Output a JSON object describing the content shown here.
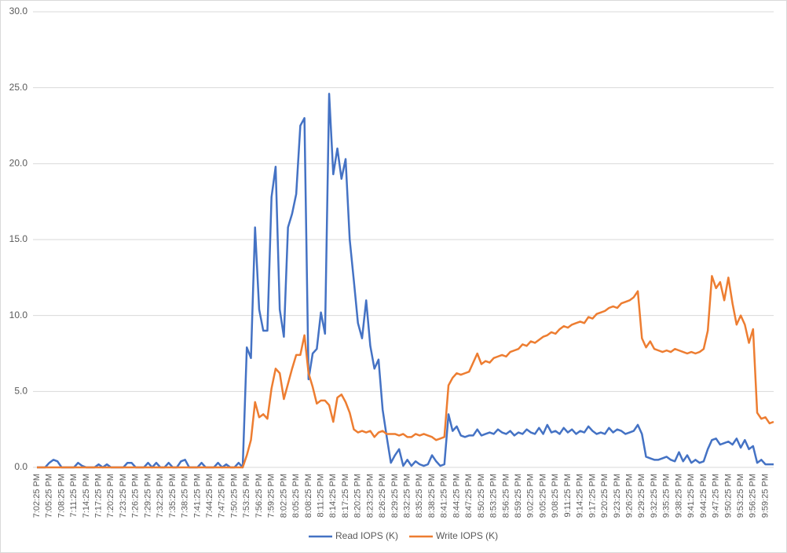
{
  "chart_data": {
    "type": "line",
    "categories": [
      "7:02:25 PM",
      null,
      null,
      "7:05:25 PM",
      null,
      null,
      "7:08:25 PM",
      null,
      null,
      "7:11:25 PM",
      null,
      null,
      "7:14:25 PM",
      null,
      null,
      "7:17:25 PM",
      null,
      null,
      "7:20:25 PM",
      null,
      null,
      "7:23:25 PM",
      null,
      null,
      "7:26:25 PM",
      null,
      null,
      "7:29:25 PM",
      null,
      null,
      "7:32:25 PM",
      null,
      null,
      "7:35:25 PM",
      null,
      null,
      "7:38:25 PM",
      null,
      null,
      "7:41:25 PM",
      null,
      null,
      "7:44:25 PM",
      null,
      null,
      "7:47:25 PM",
      null,
      null,
      "7:50:25 PM",
      null,
      null,
      "7:53:25 PM",
      null,
      null,
      "7:56:25 PM",
      null,
      null,
      "7:59:25 PM",
      null,
      null,
      "8:02:25 PM",
      null,
      null,
      "8:05:25 PM",
      null,
      null,
      "8:08:25 PM",
      null,
      null,
      "8:11:25 PM",
      null,
      null,
      "8:14:25 PM",
      null,
      null,
      "8:17:25 PM",
      null,
      null,
      "8:20:25 PM",
      null,
      null,
      "8:23:25 PM",
      null,
      null,
      "8:26:25 PM",
      null,
      null,
      "8:29:25 PM",
      null,
      null,
      "8:32:25 PM",
      null,
      null,
      "8:35:25 PM",
      null,
      null,
      "8:38:25 PM",
      null,
      null,
      "8:41:25 PM",
      null,
      null,
      "8:44:25 PM",
      null,
      null,
      "8:47:25 PM",
      null,
      null,
      "8:50:25 PM",
      null,
      null,
      "8:53:25 PM",
      null,
      null,
      "8:56:25 PM",
      null,
      null,
      "8:59:25 PM",
      null,
      null,
      "9:02:25 PM",
      null,
      null,
      "9:05:25 PM",
      null,
      null,
      "9:08:25 PM",
      null,
      null,
      "9:11:25 PM",
      null,
      null,
      "9:14:25 PM",
      null,
      null,
      "9:17:25 PM",
      null,
      null,
      "9:20:25 PM",
      null,
      null,
      "9:23:25 PM",
      null,
      null,
      "9:26:25 PM",
      null,
      null,
      "9:29:25 PM",
      null,
      null,
      "9:32:25 PM",
      null,
      null,
      "9:35:25 PM",
      null,
      null,
      "9:38:25 PM",
      null,
      null,
      "9:41:25 PM",
      null,
      null,
      "9:44:25 PM",
      null,
      null,
      "9:47:25 PM",
      null,
      null,
      "9:50:25 PM",
      null,
      null,
      "9:53:25 PM",
      null,
      null,
      "9:56:25 PM",
      null,
      null,
      "9:59:25 PM",
      null,
      null
    ],
    "series": [
      {
        "name": "Read IOPS (K)",
        "color": "#4472c4",
        "values": [
          0,
          0,
          0,
          0.3,
          0.5,
          0.4,
          0,
          0,
          0,
          0,
          0.3,
          0.1,
          0,
          0,
          0,
          0.2,
          0,
          0.2,
          0,
          0,
          0,
          0,
          0.3,
          0.3,
          0,
          0,
          0,
          0.3,
          0,
          0.3,
          0,
          0,
          0.3,
          0,
          0,
          0.4,
          0.5,
          0,
          0,
          0,
          0.3,
          0,
          0,
          0,
          0.3,
          0,
          0.2,
          0,
          0,
          0.3,
          0,
          7.9,
          7.2,
          15.8,
          10.4,
          9.0,
          9.0,
          17.8,
          19.8,
          10.4,
          8.6,
          15.8,
          16.7,
          18,
          22.5,
          23,
          5.8,
          7.5,
          7.8,
          10.2,
          8.8,
          24.6,
          19.3,
          21,
          19,
          20.3,
          15,
          12.3,
          9.5,
          8.5,
          11,
          8,
          6.5,
          7.1,
          3.8,
          2.0,
          0.3,
          0.8,
          1.2,
          0.1,
          0.5,
          0.1,
          0.4,
          0.2,
          0.1,
          0.2,
          0.8,
          0.4,
          0.1,
          0.2,
          3.5,
          2.4,
          2.7,
          2.1,
          2.0,
          2.1,
          2.1,
          2.5,
          2.1,
          2.2,
          2.3,
          2.2,
          2.5,
          2.3,
          2.2,
          2.4,
          2.1,
          2.3,
          2.2,
          2.5,
          2.3,
          2.2,
          2.6,
          2.2,
          2.8,
          2.3,
          2.4,
          2.2,
          2.6,
          2.3,
          2.5,
          2.2,
          2.4,
          2.3,
          2.7,
          2.4,
          2.2,
          2.3,
          2.2,
          2.6,
          2.3,
          2.5,
          2.4,
          2.2,
          2.3,
          2.4,
          2.8,
          2.2,
          0.7,
          0.6,
          0.5,
          0.5,
          0.6,
          0.7,
          0.5,
          0.4,
          1.0,
          0.4,
          0.8,
          0.3,
          0.5,
          0.3,
          0.4,
          1.2,
          1.8,
          1.9,
          1.5,
          1.6,
          1.7,
          1.5,
          1.9,
          1.3,
          1.8,
          1.2,
          1.4,
          0.3,
          0.5,
          0.2,
          0.2,
          0.2
        ]
      },
      {
        "name": "Write IOPS (K)",
        "color": "#ed7d31",
        "values": [
          0,
          0,
          0,
          0,
          0,
          0,
          0,
          0,
          0,
          0,
          0,
          0,
          0,
          0,
          0,
          0,
          0,
          0,
          0,
          0,
          0,
          0,
          0,
          0,
          0,
          0,
          0,
          0,
          0,
          0,
          0,
          0,
          0,
          0,
          0,
          0,
          0,
          0,
          0,
          0,
          0,
          0,
          0,
          0,
          0,
          0,
          0,
          0,
          0,
          0,
          0,
          0.8,
          1.8,
          4.3,
          3.3,
          3.5,
          3.2,
          5.2,
          6.5,
          6.2,
          4.5,
          5.5,
          6.5,
          7.4,
          7.4,
          8.7,
          6.2,
          5.3,
          4.2,
          4.4,
          4.4,
          4.1,
          3.0,
          4.6,
          4.8,
          4.3,
          3.6,
          2.5,
          2.3,
          2.4,
          2.3,
          2.4,
          2.0,
          2.3,
          2.4,
          2.2,
          2.2,
          2.2,
          2.1,
          2.2,
          2.0,
          2.0,
          2.2,
          2.1,
          2.2,
          2.1,
          2.0,
          1.8,
          1.9,
          2.0,
          5.4,
          5.9,
          6.2,
          6.1,
          6.2,
          6.3,
          6.9,
          7.5,
          6.8,
          7.0,
          6.9,
          7.2,
          7.3,
          7.4,
          7.3,
          7.6,
          7.7,
          7.8,
          8.1,
          8.0,
          8.3,
          8.2,
          8.4,
          8.6,
          8.7,
          8.9,
          8.8,
          9.1,
          9.3,
          9.2,
          9.4,
          9.5,
          9.6,
          9.5,
          9.9,
          9.8,
          10.1,
          10.2,
          10.3,
          10.5,
          10.6,
          10.5,
          10.8,
          10.9,
          11.0,
          11.2,
          11.6,
          8.5,
          7.9,
          8.3,
          7.8,
          7.7,
          7.6,
          7.7,
          7.6,
          7.8,
          7.7,
          7.6,
          7.5,
          7.6,
          7.5,
          7.6,
          7.8,
          9.0,
          12.6,
          11.8,
          12.2,
          11.0,
          12.5,
          10.8,
          9.4,
          10.0,
          9.4,
          8.2,
          9.1,
          3.6,
          3.2,
          3.3,
          2.9,
          3.0
        ]
      }
    ],
    "ylim": [
      0,
      30
    ],
    "yticks": [
      {
        "value": 0,
        "label": "0.0"
      },
      {
        "value": 5,
        "label": "5.0"
      },
      {
        "value": 10,
        "label": "10.0"
      },
      {
        "value": 15,
        "label": "15.0"
      },
      {
        "value": 20,
        "label": "20.0"
      },
      {
        "value": 25,
        "label": "25.0"
      },
      {
        "value": 30,
        "label": "30.0"
      }
    ],
    "grid": true,
    "legend": "bottom"
  }
}
